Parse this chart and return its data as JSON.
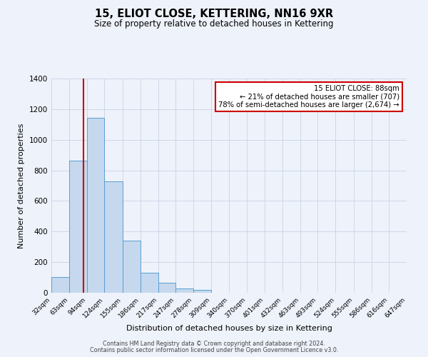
{
  "title1": "15, ELIOT CLOSE, KETTERING, NN16 9XR",
  "title2": "Size of property relative to detached houses in Kettering",
  "xlabel": "Distribution of detached houses by size in Kettering",
  "ylabel": "Number of detached properties",
  "bin_labels": [
    "32sqm",
    "63sqm",
    "94sqm",
    "124sqm",
    "155sqm",
    "186sqm",
    "217sqm",
    "247sqm",
    "278sqm",
    "309sqm",
    "340sqm",
    "370sqm",
    "401sqm",
    "432sqm",
    "463sqm",
    "493sqm",
    "524sqm",
    "555sqm",
    "586sqm",
    "616sqm",
    "647sqm"
  ],
  "bar_values": [
    105,
    865,
    1145,
    730,
    340,
    130,
    65,
    30,
    20,
    0,
    0,
    0,
    0,
    0,
    0,
    0,
    0,
    0,
    0,
    0
  ],
  "bin_edges": [
    32,
    63,
    94,
    124,
    155,
    186,
    217,
    247,
    278,
    309,
    340,
    370,
    401,
    432,
    463,
    493,
    524,
    555,
    586,
    616,
    647
  ],
  "bar_color": "#c5d8ed",
  "bar_edge_color": "#5a9fd4",
  "vline_x": 88,
  "vline_color": "#cc0000",
  "ylim": [
    0,
    1400
  ],
  "yticks": [
    0,
    200,
    400,
    600,
    800,
    1000,
    1200,
    1400
  ],
  "annotation_line1": "15 ELIOT CLOSE: 88sqm",
  "annotation_line2": "← 21% of detached houses are smaller (707)",
  "annotation_line3": "78% of semi-detached houses are larger (2,674) →",
  "annotation_box_color": "#ffffff",
  "annotation_box_edge_color": "#cc0000",
  "footer1": "Contains HM Land Registry data © Crown copyright and database right 2024.",
  "footer2": "Contains public sector information licensed under the Open Government Licence v3.0.",
  "background_color": "#eef2fa",
  "grid_color": "#c8d4e8"
}
